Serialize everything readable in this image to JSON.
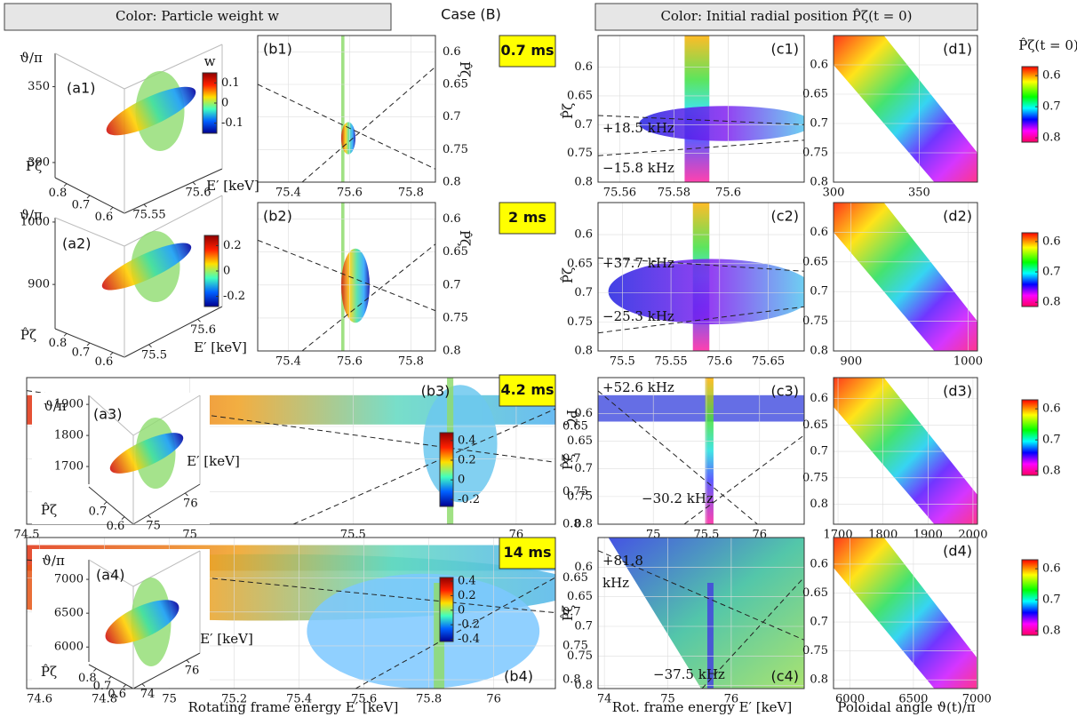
{
  "header": {
    "left": "Color: Particle weight w",
    "case": "Case (B)",
    "right": "Color: Initial radial position P̂ζ(t = 0)"
  },
  "chart_data": [
    {
      "type": "scatter3d",
      "label": "(a1)",
      "zlabel": "ϑ/π",
      "zlim": [
        290,
        372
      ],
      "zticks": [
        300,
        350
      ],
      "ylabel": "P̂ζ",
      "ylim": [
        0.85,
        0.55
      ],
      "yticks": [
        0.8,
        0.7,
        0.6
      ],
      "xlabel": "E′ [keV]",
      "xlim": [
        75.53,
        75.63
      ],
      "xticks": [
        75.55,
        75.6
      ],
      "colorbar": {
        "label": "w",
        "lim": [
          -0.15,
          0.15
        ],
        "ticks": [
          0.1,
          0,
          -0.1
        ]
      }
    },
    {
      "type": "scatter",
      "label": "(b1)",
      "time": "0.7 ms",
      "ylabel": "P̂ζ",
      "xlim": [
        75.3,
        75.88
      ],
      "xticks": [
        75.4,
        75.6,
        75.8
      ],
      "ylim": [
        0.8,
        0.575
      ],
      "yticks": [
        0.6,
        0.65,
        0.7,
        0.75,
        0.8
      ],
      "dashed": [
        {
          "x": [
            75.3,
            75.88
          ],
          "y": [
            0.65,
            0.78
          ]
        },
        {
          "x": [
            75.445,
            75.88
          ],
          "y": [
            0.8,
            0.623
          ]
        }
      ]
    },
    {
      "type": "scatter",
      "label": "(c1)",
      "ylabel": "P̂ζ",
      "xlim": [
        75.552,
        75.628
      ],
      "xticks": [
        75.56,
        75.58,
        75.6
      ],
      "ylim": [
        0.8,
        0.545
      ],
      "yticks": [
        0.6,
        0.65,
        0.7,
        0.75,
        0.8
      ],
      "annotations": [
        "+18.5 kHz",
        "−15.8 kHz"
      ],
      "dashed": [
        {
          "x": [
            75.552,
            75.628
          ],
          "y": [
            0.684,
            0.7
          ]
        },
        {
          "x": [
            75.552,
            75.628
          ],
          "y": [
            0.754,
            0.727
          ]
        }
      ]
    },
    {
      "type": "scatter",
      "label": "(d1)",
      "xlim": [
        300,
        384
      ],
      "xticks": [
        300,
        350
      ],
      "ylim": [
        0.8,
        0.55
      ],
      "yticks": [
        0.6,
        0.65,
        0.7,
        0.75,
        0.8
      ],
      "colorbar": {
        "label": "P̂ζ(t = 0)",
        "lim": [
          0.814,
          0.571
        ],
        "ticks": [
          0.6,
          0.7,
          0.8
        ]
      }
    },
    {
      "type": "scatter3d",
      "label": "(a2)",
      "zlabel": "ϑ/π",
      "zlim": [
        829,
        1007
      ],
      "zticks": [
        900,
        1000
      ],
      "ylabel": "P̂ζ",
      "ylim": [
        0.85,
        0.55
      ],
      "yticks": [
        0.8,
        0.7,
        0.6
      ],
      "xlabel": "E′ [keV]",
      "xlim": [
        75.45,
        75.65
      ],
      "xticks": [
        75.5,
        75.6
      ],
      "colorbar": {
        "lim": [
          -0.28,
          0.28
        ],
        "ticks": [
          0.2,
          0,
          -0.2
        ]
      }
    },
    {
      "type": "scatter",
      "label": "(b2)",
      "time": "2 ms",
      "ylabel": "P̂ζ",
      "xlim": [
        75.3,
        75.88
      ],
      "xticks": [
        75.4,
        75.6,
        75.8
      ],
      "ylim": [
        0.8,
        0.575
      ],
      "yticks": [
        0.6,
        0.65,
        0.7,
        0.75,
        0.8
      ],
      "dashed": [
        {
          "x": [
            75.3,
            75.88
          ],
          "y": [
            0.632,
            0.739
          ]
        },
        {
          "x": [
            75.445,
            75.88
          ],
          "y": [
            0.8,
            0.638
          ]
        }
      ]
    },
    {
      "type": "scatter",
      "label": "(c2)",
      "ylabel": "P̂ζ",
      "xlim": [
        75.475,
        75.687
      ],
      "xticks": [
        75.5,
        75.55,
        75.6,
        75.65
      ],
      "ylim": [
        0.8,
        0.545
      ],
      "yticks": [
        0.6,
        0.65,
        0.7,
        0.75,
        0.8
      ],
      "annotations": [
        "+37.7 kHz",
        "−25.3 kHz"
      ],
      "dashed": [
        {
          "x": [
            75.475,
            75.687
          ],
          "y": [
            0.64,
            0.663
          ]
        },
        {
          "x": [
            75.475,
            75.687
          ],
          "y": [
            0.769,
            0.724
          ]
        }
      ]
    },
    {
      "type": "scatter",
      "label": "(d2)",
      "xlim": [
        885,
        1008
      ],
      "xticks": [
        900,
        1000
      ],
      "ylim": [
        0.8,
        0.55
      ],
      "yticks": [
        0.6,
        0.65,
        0.7,
        0.75,
        0.8
      ],
      "colorbar": {
        "lim": [
          0.814,
          0.571
        ],
        "ticks": [
          0.6,
          0.7,
          0.8
        ]
      }
    },
    {
      "type": "scatter3d",
      "label": "(a3)",
      "zlabel": "ϑ/π",
      "zlim": [
        1643,
        1929
      ],
      "zticks": [
        1700,
        1800,
        1900
      ],
      "ylabel": "P̂ζ",
      "ylim": [
        0.8,
        0.55
      ],
      "yticks": [
        0.7,
        0.6
      ],
      "xlabel": "E′ [keV]",
      "xlim": [
        74.6,
        76.4
      ],
      "xticks": [
        75,
        76
      ],
      "colorbar": {
        "lim": [
          -0.27,
          0.48
        ],
        "ticks": [
          0.4,
          0.2,
          0,
          -0.2
        ]
      }
    },
    {
      "type": "scatter",
      "label": "(b3)",
      "time": "4.2 ms",
      "ylabel": "P̂ζ",
      "xlim": [
        74.5,
        76.12
      ],
      "xticks": [
        74.5,
        75,
        75.5,
        76
      ],
      "ylim": [
        0.8,
        0.575
      ],
      "yticks": [
        0.65,
        0.7,
        0.75,
        0.8
      ],
      "dashed": [
        {
          "x": [
            74.5,
            76.12
          ],
          "y": [
            0.595,
            0.705
          ]
        },
        {
          "x": [
            75.317,
            76.12
          ],
          "y": [
            0.8,
            0.623
          ]
        }
      ]
    },
    {
      "type": "scatter",
      "label": "(c3)",
      "ylabel": "P̂ζ",
      "xlim": [
        74.48,
        76.42
      ],
      "xticks": [
        75,
        75.5,
        76
      ],
      "ylim": [
        0.8,
        0.535
      ],
      "yticks": [
        0.6,
        0.65,
        0.7,
        0.75,
        0.8
      ],
      "annotations": [
        "+52.6 kHz",
        "−30.2 kHz"
      ],
      "dashed": [
        {
          "x": [
            74.48,
            75.98
          ],
          "y": [
            0.559,
            0.8
          ]
        },
        {
          "x": [
            75.29,
            76.42
          ],
          "y": [
            0.8,
            0.639
          ]
        }
      ]
    },
    {
      "type": "scatter",
      "label": "(d3)",
      "xlim": [
        1690,
        2010
      ],
      "xticks": [
        1700,
        1800,
        1900,
        2000
      ],
      "ylim": [
        0.838,
        0.56
      ],
      "yticks": [
        0.6,
        0.65,
        0.7,
        0.75,
        0.8
      ],
      "colorbar": {
        "lim": [
          0.814,
          0.571
        ],
        "ticks": [
          0.6,
          0.7,
          0.8
        ]
      }
    },
    {
      "type": "scatter3d",
      "label": "(a4)",
      "zlabel": "ϑ/π",
      "zlim": [
        5780,
        7290
      ],
      "zticks": [
        6000,
        6500,
        7000
      ],
      "ylabel": "P̂ζ",
      "ylim": [
        0.85,
        0.55
      ],
      "yticks": [
        0.8,
        0.7,
        0.6
      ],
      "xlabel": "E′ [keV]",
      "xlim": [
        73.6,
        76.6
      ],
      "xticks": [
        74,
        76
      ],
      "colorbar": {
        "lim": [
          -0.43,
          0.45
        ],
        "ticks": [
          0.4,
          0.2,
          0,
          -0.2,
          -0.4
        ]
      }
    },
    {
      "type": "scatter",
      "label": "(b4)",
      "time": "14 ms",
      "xlabel": "Rotating frame energy E′ [keV]",
      "xlim": [
        74.56,
        76.19
      ],
      "xticks": [
        74.6,
        74.8,
        75,
        75.2,
        75.4,
        75.6,
        75.8,
        76
      ],
      "ylim": [
        0.813,
        0.59
      ],
      "yticks": [
        0.65,
        0.7,
        0.75,
        0.8
      ],
      "dashed": [
        {
          "x": [
            74.56,
            76.19
          ],
          "y": [
            0.623,
            0.701
          ]
        },
        {
          "x": [
            75.574,
            76.19
          ],
          "y": [
            0.813,
            0.649
          ]
        }
      ]
    },
    {
      "type": "scatter",
      "label": "(c4)",
      "ylabel": "P̂ζ",
      "xlabel": "Rot. frame energy E′ [keV]",
      "xlim": [
        73.9,
        77.15
      ],
      "xticks": [
        74,
        75,
        76
      ],
      "ylim": [
        0.805,
        0.55
      ],
      "yticks": [
        0.6,
        0.65,
        0.7,
        0.75,
        0.8
      ],
      "annotations": [
        "+81.8",
        "kHz",
        "−37.5 kHz"
      ],
      "dashed": [
        {
          "x": [
            73.9,
            77.15
          ],
          "y": [
            0.572,
            0.723
          ]
        },
        {
          "x": [
            75.54,
            77.15
          ],
          "y": [
            0.805,
            0.617
          ]
        }
      ]
    },
    {
      "type": "scatter",
      "label": "(d4)",
      "xlabel": "Poloidal angle ϑ(t)/π",
      "xlim": [
        5870,
        7005
      ],
      "xticks": [
        6000,
        6500,
        7000
      ],
      "ylim": [
        0.815,
        0.554
      ],
      "yticks": [
        0.6,
        0.65,
        0.7,
        0.75,
        0.8
      ],
      "colorbar": {
        "lim": [
          0.814,
          0.571
        ],
        "ticks": [
          0.6,
          0.7,
          0.8
        ]
      }
    }
  ]
}
